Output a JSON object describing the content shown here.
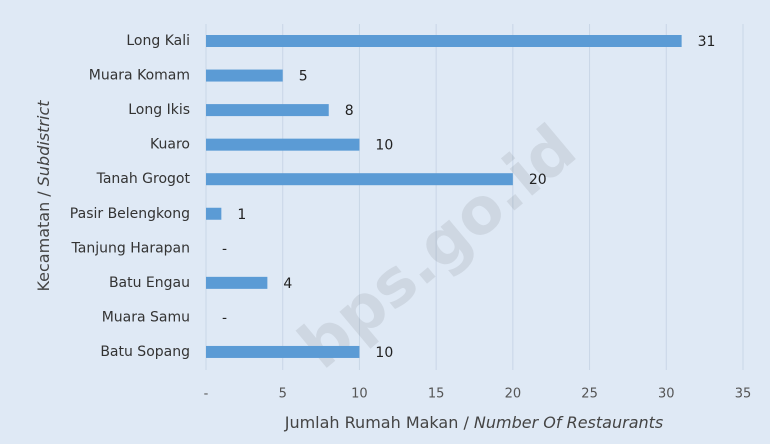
{
  "chart_data": {
    "type": "barh",
    "categories": [
      "Long Kali",
      "Muara Komam",
      "Long Ikis",
      "Kuaro",
      "Tanah Grogot",
      "Pasir Belengkong",
      "Tanjung Harapan",
      "Batu Engau",
      "Muara Samu",
      "Batu Sopang"
    ],
    "values": [
      31,
      5,
      8,
      10,
      20,
      1,
      0,
      4,
      0,
      10
    ],
    "value_labels": [
      "31",
      "5",
      "8",
      "10",
      "20",
      "1",
      "-",
      "4",
      "-",
      "10"
    ],
    "color": "#5b9bd5",
    "xlim": [
      0,
      35
    ],
    "xticks": [
      {
        "value": 0,
        "label": "-"
      },
      5,
      10,
      15,
      20,
      25,
      30,
      35
    ],
    "grid": true,
    "xlabel": [
      "Jumlah Rumah Makan / ",
      "Number Of Restaurants"
    ],
    "ylabel": [
      "Kecamatan / ",
      "Subdistrict"
    ],
    "watermark": "bps.go.id"
  }
}
